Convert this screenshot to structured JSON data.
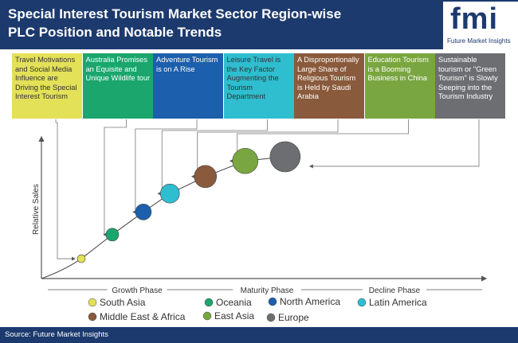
{
  "header": {
    "title": "Special Interest Tourism Market Sector Region-wise PLC Position and Notable Trends",
    "logo_text": "fmi",
    "logo_subtitle": "Future Market Insights"
  },
  "trends": [
    {
      "text": "Travel Motivations and Social Media Influence are Driving the Special Interest Tourism",
      "color": "#e3e157",
      "text_color": "#333333"
    },
    {
      "text": "Australia Promises an Equisite and Unique Wildlife tour",
      "color": "#1aa66d",
      "text_color": "#ffffff"
    },
    {
      "text": "Adventure Tourism is on A Rise",
      "color": "#1c5fac",
      "text_color": "#ffffff"
    },
    {
      "text": "Leisure Travel is the Key Factor Augmenting the Tourism Department",
      "color": "#2fbdd0",
      "text_color": "#333333"
    },
    {
      "text": "A Disproportionally Large Share of Religious Tourism is Held by Saudi Arabia",
      "color": "#8a5a3c",
      "text_color": "#ffffff"
    },
    {
      "text": "Education Tourism is a Booming Business in China",
      "color": "#79a640",
      "text_color": "#ffffff"
    },
    {
      "text": "Sustainable tourism or \"Green Tourism\" is Slowly Seeping into the Tourism Industry",
      "color": "#6d6e71",
      "text_color": "#ffffff"
    }
  ],
  "chart_data": {
    "type": "scatter",
    "ylabel": "Relative Sales",
    "phases": [
      "Growth Phase",
      "Maturity Phase",
      "Decline Phase"
    ],
    "points": [
      {
        "region": "South Asia",
        "phase": "Growth Phase",
        "relative_position": 0.09,
        "relative_sales": 0.14,
        "color": "#e3e157"
      },
      {
        "region": "Oceania",
        "phase": "Growth Phase",
        "relative_position": 0.16,
        "relative_sales": 0.31,
        "color": "#1aa66d"
      },
      {
        "region": "North America",
        "phase": "Growth Phase",
        "relative_position": 0.23,
        "relative_sales": 0.47,
        "color": "#1c5fac"
      },
      {
        "region": "Latin America",
        "phase": "Maturity Phase",
        "relative_position": 0.29,
        "relative_sales": 0.6,
        "color": "#2fbdd0"
      },
      {
        "region": "Middle East & Africa",
        "phase": "Maturity Phase",
        "relative_position": 0.37,
        "relative_sales": 0.72,
        "color": "#8a5a3c"
      },
      {
        "region": "East Asia",
        "phase": "Maturity Phase",
        "relative_position": 0.46,
        "relative_sales": 0.83,
        "color": "#79a640"
      },
      {
        "region": "Europe",
        "phase": "Maturity Phase",
        "relative_position": 0.55,
        "relative_sales": 0.86,
        "color": "#6d6e71"
      }
    ],
    "legend": [
      {
        "label": "South Asia",
        "color": "#e3e157"
      },
      {
        "label": "Oceania",
        "color": "#1aa66d"
      },
      {
        "label": "North America",
        "color": "#1c5fac"
      },
      {
        "label": "Latin America",
        "color": "#2fbdd0"
      },
      {
        "label": "Middle East & Africa",
        "color": "#8a5a3c"
      },
      {
        "label": "East Asia",
        "color": "#79a640"
      },
      {
        "label": "Europe",
        "color": "#6d6e71"
      }
    ]
  },
  "footer": {
    "source": "Source: Future Market Insights"
  }
}
